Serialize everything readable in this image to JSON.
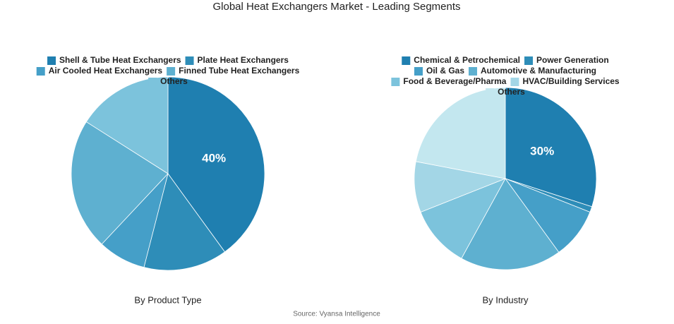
{
  "title": "Global Heat Exchangers Market - Leading Segments",
  "source": "Source: Vyansa Intelligence",
  "chart_data": [
    {
      "type": "pie",
      "title": "By Product Type",
      "categories": [
        "Shell & Tube Heat Exchangers",
        "Plate Heat Exchangers",
        "Air Cooled Heat Exchangers",
        "Finned Tube Heat Exchangers",
        "Others"
      ],
      "values": [
        40,
        14,
        8,
        22,
        16
      ],
      "value_labels": [
        "40%",
        null,
        null,
        null,
        null
      ],
      "colors": [
        "#1f7fb0",
        "#2e8db8",
        "#459fc8",
        "#5eb0d0",
        "#7cc3dc"
      ]
    },
    {
      "type": "pie",
      "title": "By Industry",
      "categories": [
        "Chemical & Petrochemical",
        "Power Generation",
        "Oil & Gas",
        "Automotive & Manufacturing",
        "Food & Beverage/Pharma",
        "HVAC/Building Services",
        "Others"
      ],
      "values": [
        30,
        1,
        9,
        18,
        11,
        9,
        22
      ],
      "value_labels": [
        "30%",
        null,
        null,
        null,
        null,
        null,
        null
      ],
      "colors": [
        "#1f7fb0",
        "#2e8db8",
        "#459fc8",
        "#5eb0d0",
        "#7cc3dc",
        "#a3d6e6",
        "#c3e7ef"
      ]
    }
  ]
}
